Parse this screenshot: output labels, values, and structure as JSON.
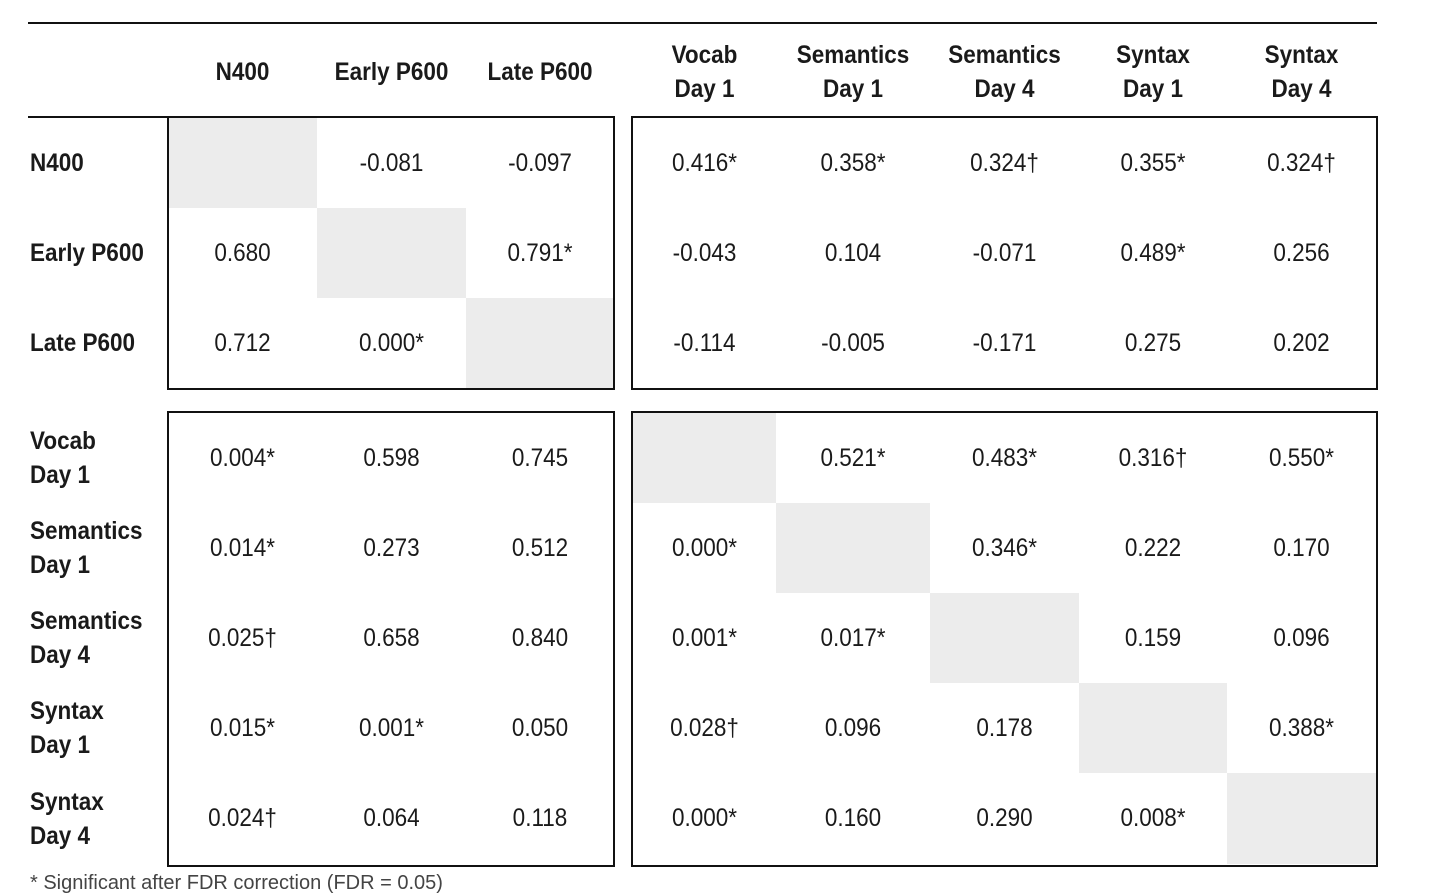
{
  "columns": [
    "N400",
    "Early P600",
    "Late P600",
    "Vocab Day 1",
    "Semantics Day 1",
    "Semantics Day 4",
    "Syntax Day 1",
    "Syntax Day 4"
  ],
  "column_lines": [
    [
      "N400"
    ],
    [
      "Early P600"
    ],
    [
      "Late P600"
    ],
    [
      "Vocab",
      "Day 1"
    ],
    [
      "Semantics",
      "Day 1"
    ],
    [
      "Semantics",
      "Day 4"
    ],
    [
      "Syntax",
      "Day 1"
    ],
    [
      "Syntax",
      "Day 4"
    ]
  ],
  "row_lines": [
    [
      "N400"
    ],
    [
      "Early P600"
    ],
    [
      "Late P600"
    ],
    [
      "Vocab",
      "Day 1"
    ],
    [
      "Semantics",
      "Day 1"
    ],
    [
      "Semantics",
      "Day 4"
    ],
    [
      "Syntax",
      "Day 1"
    ],
    [
      "Syntax",
      "Day 4"
    ]
  ],
  "cells": [
    [
      "",
      "-0.081",
      "-0.097",
      "0.416*",
      "0.358*",
      "0.324†",
      "0.355*",
      "0.324†"
    ],
    [
      "0.680",
      "",
      "0.791*",
      "-0.043",
      "0.104",
      "-0.071",
      "0.489*",
      "0.256"
    ],
    [
      "0.712",
      "0.000*",
      "",
      "-0.114",
      "-0.005",
      "-0.171",
      "0.275",
      "0.202"
    ],
    [
      "0.004*",
      "0.598",
      "0.745",
      "",
      "0.521*",
      "0.483*",
      "0.316†",
      "0.550*"
    ],
    [
      "0.014*",
      "0.273",
      "0.512",
      "0.000*",
      "",
      "0.346*",
      "0.222",
      "0.170"
    ],
    [
      "0.025†",
      "0.658",
      "0.840",
      "0.001*",
      "0.017*",
      "",
      "0.159",
      "0.096"
    ],
    [
      "0.015*",
      "0.001*",
      "0.050",
      "0.028†",
      "0.096",
      "0.178",
      "",
      "0.388*"
    ],
    [
      "0.024†",
      "0.064",
      "0.118",
      "0.000*",
      "0.160",
      "0.290",
      "0.008*",
      ""
    ]
  ],
  "footnote": "* Significant after FDR correction (FDR = 0.05)"
}
